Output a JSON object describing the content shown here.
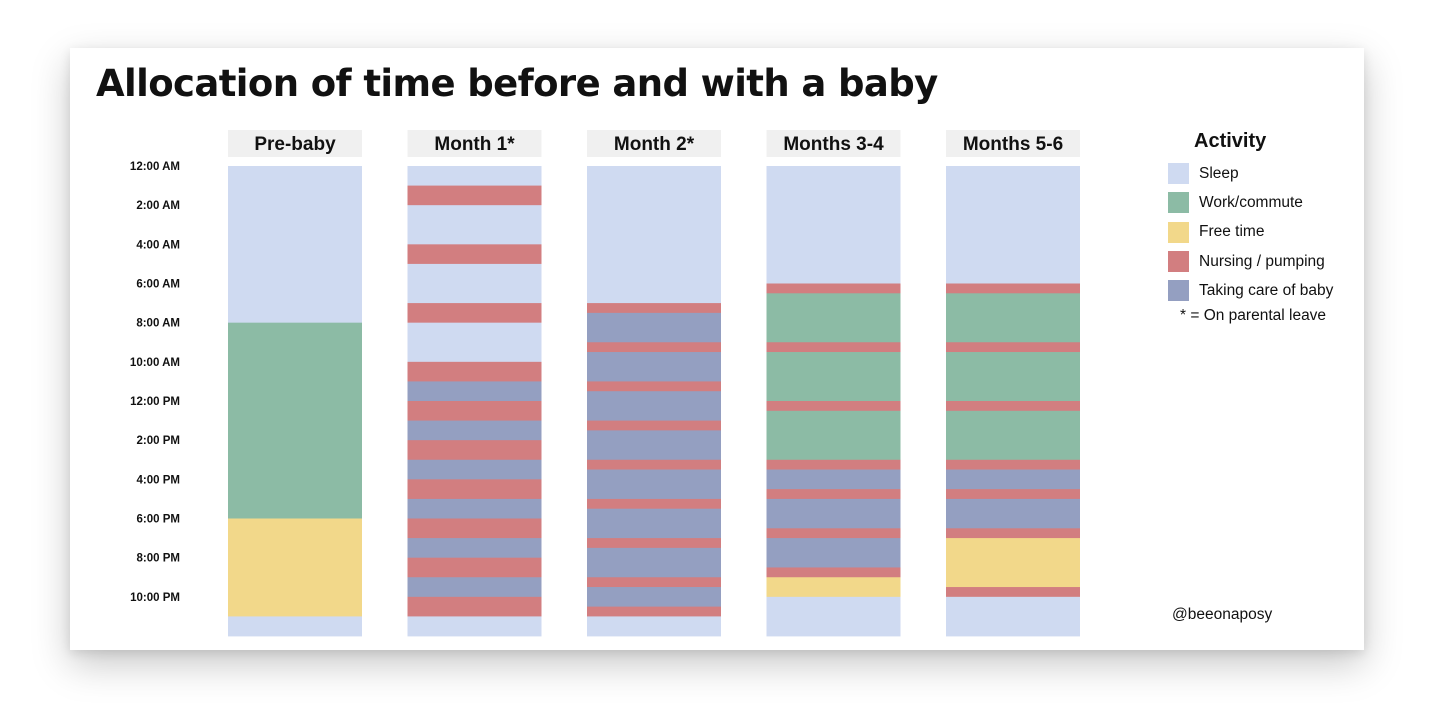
{
  "title": "Allocation of time before and with a baby",
  "credit": "@beeonaposy",
  "colors": {
    "Sleep": "#cfdaf1",
    "Work/commute": "#8cbba5",
    "Free time": "#f2d88a",
    "Nursing / pumping": "#d27e80",
    "Taking care of baby": "#949fc1",
    "header_bg": "#f0f0f0"
  },
  "legend": {
    "title": "Activity",
    "items": [
      {
        "label": "Sleep"
      },
      {
        "label": "Work/commute"
      },
      {
        "label": "Free time"
      },
      {
        "label": "Nursing / pumping"
      },
      {
        "label": "Taking care of baby"
      }
    ],
    "note": "* = On parental leave"
  },
  "chart_data": {
    "type": "heatmap",
    "title": "Allocation of time before and with a baby",
    "y_axis": {
      "start": "12:00 AM",
      "end": "12:00 AM (next day)",
      "unit": "hours",
      "ticks": [
        "12:00 AM",
        "2:00 AM",
        "4:00 AM",
        "6:00 AM",
        "8:00 AM",
        "10:00 AM",
        "12:00 PM",
        "2:00 PM",
        "4:00 PM",
        "6:00 PM",
        "8:00 PM",
        "10:00 PM"
      ]
    },
    "categories": [
      "Pre-baby",
      "Month 1*",
      "Month 2*",
      "Months 3-4",
      "Months 5-6"
    ],
    "series": [
      {
        "name": "Pre-baby",
        "segments": [
          {
            "start": 0,
            "end": 8,
            "activity": "Sleep"
          },
          {
            "start": 8,
            "end": 18,
            "activity": "Work/commute"
          },
          {
            "start": 18,
            "end": 23,
            "activity": "Free time"
          },
          {
            "start": 23,
            "end": 24,
            "activity": "Sleep"
          }
        ]
      },
      {
        "name": "Month 1*",
        "segments": [
          {
            "start": 0,
            "end": 1,
            "activity": "Sleep"
          },
          {
            "start": 1,
            "end": 2,
            "activity": "Nursing / pumping"
          },
          {
            "start": 2,
            "end": 4,
            "activity": "Sleep"
          },
          {
            "start": 4,
            "end": 5,
            "activity": "Nursing / pumping"
          },
          {
            "start": 5,
            "end": 7,
            "activity": "Sleep"
          },
          {
            "start": 7,
            "end": 8,
            "activity": "Nursing / pumping"
          },
          {
            "start": 8,
            "end": 10,
            "activity": "Sleep"
          },
          {
            "start": 10,
            "end": 11,
            "activity": "Nursing / pumping"
          },
          {
            "start": 11,
            "end": 12,
            "activity": "Taking care of baby"
          },
          {
            "start": 12,
            "end": 13,
            "activity": "Nursing / pumping"
          },
          {
            "start": 13,
            "end": 14,
            "activity": "Taking care of baby"
          },
          {
            "start": 14,
            "end": 15,
            "activity": "Nursing / pumping"
          },
          {
            "start": 15,
            "end": 16,
            "activity": "Taking care of baby"
          },
          {
            "start": 16,
            "end": 17,
            "activity": "Nursing / pumping"
          },
          {
            "start": 17,
            "end": 18,
            "activity": "Taking care of baby"
          },
          {
            "start": 18,
            "end": 19,
            "activity": "Nursing / pumping"
          },
          {
            "start": 19,
            "end": 20,
            "activity": "Taking care of baby"
          },
          {
            "start": 20,
            "end": 21,
            "activity": "Nursing / pumping"
          },
          {
            "start": 21,
            "end": 22,
            "activity": "Taking care of baby"
          },
          {
            "start": 22,
            "end": 23,
            "activity": "Nursing / pumping"
          },
          {
            "start": 23,
            "end": 24,
            "activity": "Sleep"
          }
        ]
      },
      {
        "name": "Month 2*",
        "segments": [
          {
            "start": 0,
            "end": 7,
            "activity": "Sleep"
          },
          {
            "start": 7,
            "end": 7.5,
            "activity": "Nursing / pumping"
          },
          {
            "start": 7.5,
            "end": 9,
            "activity": "Taking care of baby"
          },
          {
            "start": 9,
            "end": 9.5,
            "activity": "Nursing / pumping"
          },
          {
            "start": 9.5,
            "end": 11,
            "activity": "Taking care of baby"
          },
          {
            "start": 11,
            "end": 11.5,
            "activity": "Nursing / pumping"
          },
          {
            "start": 11.5,
            "end": 13,
            "activity": "Taking care of baby"
          },
          {
            "start": 13,
            "end": 13.5,
            "activity": "Nursing / pumping"
          },
          {
            "start": 13.5,
            "end": 15,
            "activity": "Taking care of baby"
          },
          {
            "start": 15,
            "end": 15.5,
            "activity": "Nursing / pumping"
          },
          {
            "start": 15.5,
            "end": 17,
            "activity": "Taking care of baby"
          },
          {
            "start": 17,
            "end": 17.5,
            "activity": "Nursing / pumping"
          },
          {
            "start": 17.5,
            "end": 19,
            "activity": "Taking care of baby"
          },
          {
            "start": 19,
            "end": 19.5,
            "activity": "Nursing / pumping"
          },
          {
            "start": 19.5,
            "end": 21,
            "activity": "Taking care of baby"
          },
          {
            "start": 21,
            "end": 21.5,
            "activity": "Nursing / pumping"
          },
          {
            "start": 21.5,
            "end": 22.5,
            "activity": "Taking care of baby"
          },
          {
            "start": 22.5,
            "end": 23,
            "activity": "Nursing / pumping"
          },
          {
            "start": 23,
            "end": 24,
            "activity": "Sleep"
          }
        ]
      },
      {
        "name": "Months 3-4",
        "segments": [
          {
            "start": 0,
            "end": 6,
            "activity": "Sleep"
          },
          {
            "start": 6,
            "end": 6.5,
            "activity": "Nursing / pumping"
          },
          {
            "start": 6.5,
            "end": 9,
            "activity": "Work/commute"
          },
          {
            "start": 9,
            "end": 9.5,
            "activity": "Nursing / pumping"
          },
          {
            "start": 9.5,
            "end": 12,
            "activity": "Work/commute"
          },
          {
            "start": 12,
            "end": 12.5,
            "activity": "Nursing / pumping"
          },
          {
            "start": 12.5,
            "end": 15,
            "activity": "Work/commute"
          },
          {
            "start": 15,
            "end": 15.5,
            "activity": "Nursing / pumping"
          },
          {
            "start": 15.5,
            "end": 16.5,
            "activity": "Taking care of baby"
          },
          {
            "start": 16.5,
            "end": 17,
            "activity": "Nursing / pumping"
          },
          {
            "start": 17,
            "end": 18.5,
            "activity": "Taking care of baby"
          },
          {
            "start": 18.5,
            "end": 19,
            "activity": "Nursing / pumping"
          },
          {
            "start": 19,
            "end": 20.5,
            "activity": "Taking care of baby"
          },
          {
            "start": 20.5,
            "end": 21,
            "activity": "Nursing / pumping"
          },
          {
            "start": 21,
            "end": 22,
            "activity": "Free time"
          },
          {
            "start": 22,
            "end": 24,
            "activity": "Sleep"
          }
        ]
      },
      {
        "name": "Months 5-6",
        "segments": [
          {
            "start": 0,
            "end": 6,
            "activity": "Sleep"
          },
          {
            "start": 6,
            "end": 6.5,
            "activity": "Nursing / pumping"
          },
          {
            "start": 6.5,
            "end": 9,
            "activity": "Work/commute"
          },
          {
            "start": 9,
            "end": 9.5,
            "activity": "Nursing / pumping"
          },
          {
            "start": 9.5,
            "end": 12,
            "activity": "Work/commute"
          },
          {
            "start": 12,
            "end": 12.5,
            "activity": "Nursing / pumping"
          },
          {
            "start": 12.5,
            "end": 15,
            "activity": "Work/commute"
          },
          {
            "start": 15,
            "end": 15.5,
            "activity": "Nursing / pumping"
          },
          {
            "start": 15.5,
            "end": 16.5,
            "activity": "Taking care of baby"
          },
          {
            "start": 16.5,
            "end": 17,
            "activity": "Nursing / pumping"
          },
          {
            "start": 17,
            "end": 18.5,
            "activity": "Taking care of baby"
          },
          {
            "start": 18.5,
            "end": 19,
            "activity": "Nursing / pumping"
          },
          {
            "start": 19,
            "end": 21.5,
            "activity": "Free time"
          },
          {
            "start": 21.5,
            "end": 22,
            "activity": "Nursing / pumping"
          },
          {
            "start": 22,
            "end": 24,
            "activity": "Sleep"
          }
        ]
      }
    ],
    "legend_position": "right",
    "grid": false
  }
}
